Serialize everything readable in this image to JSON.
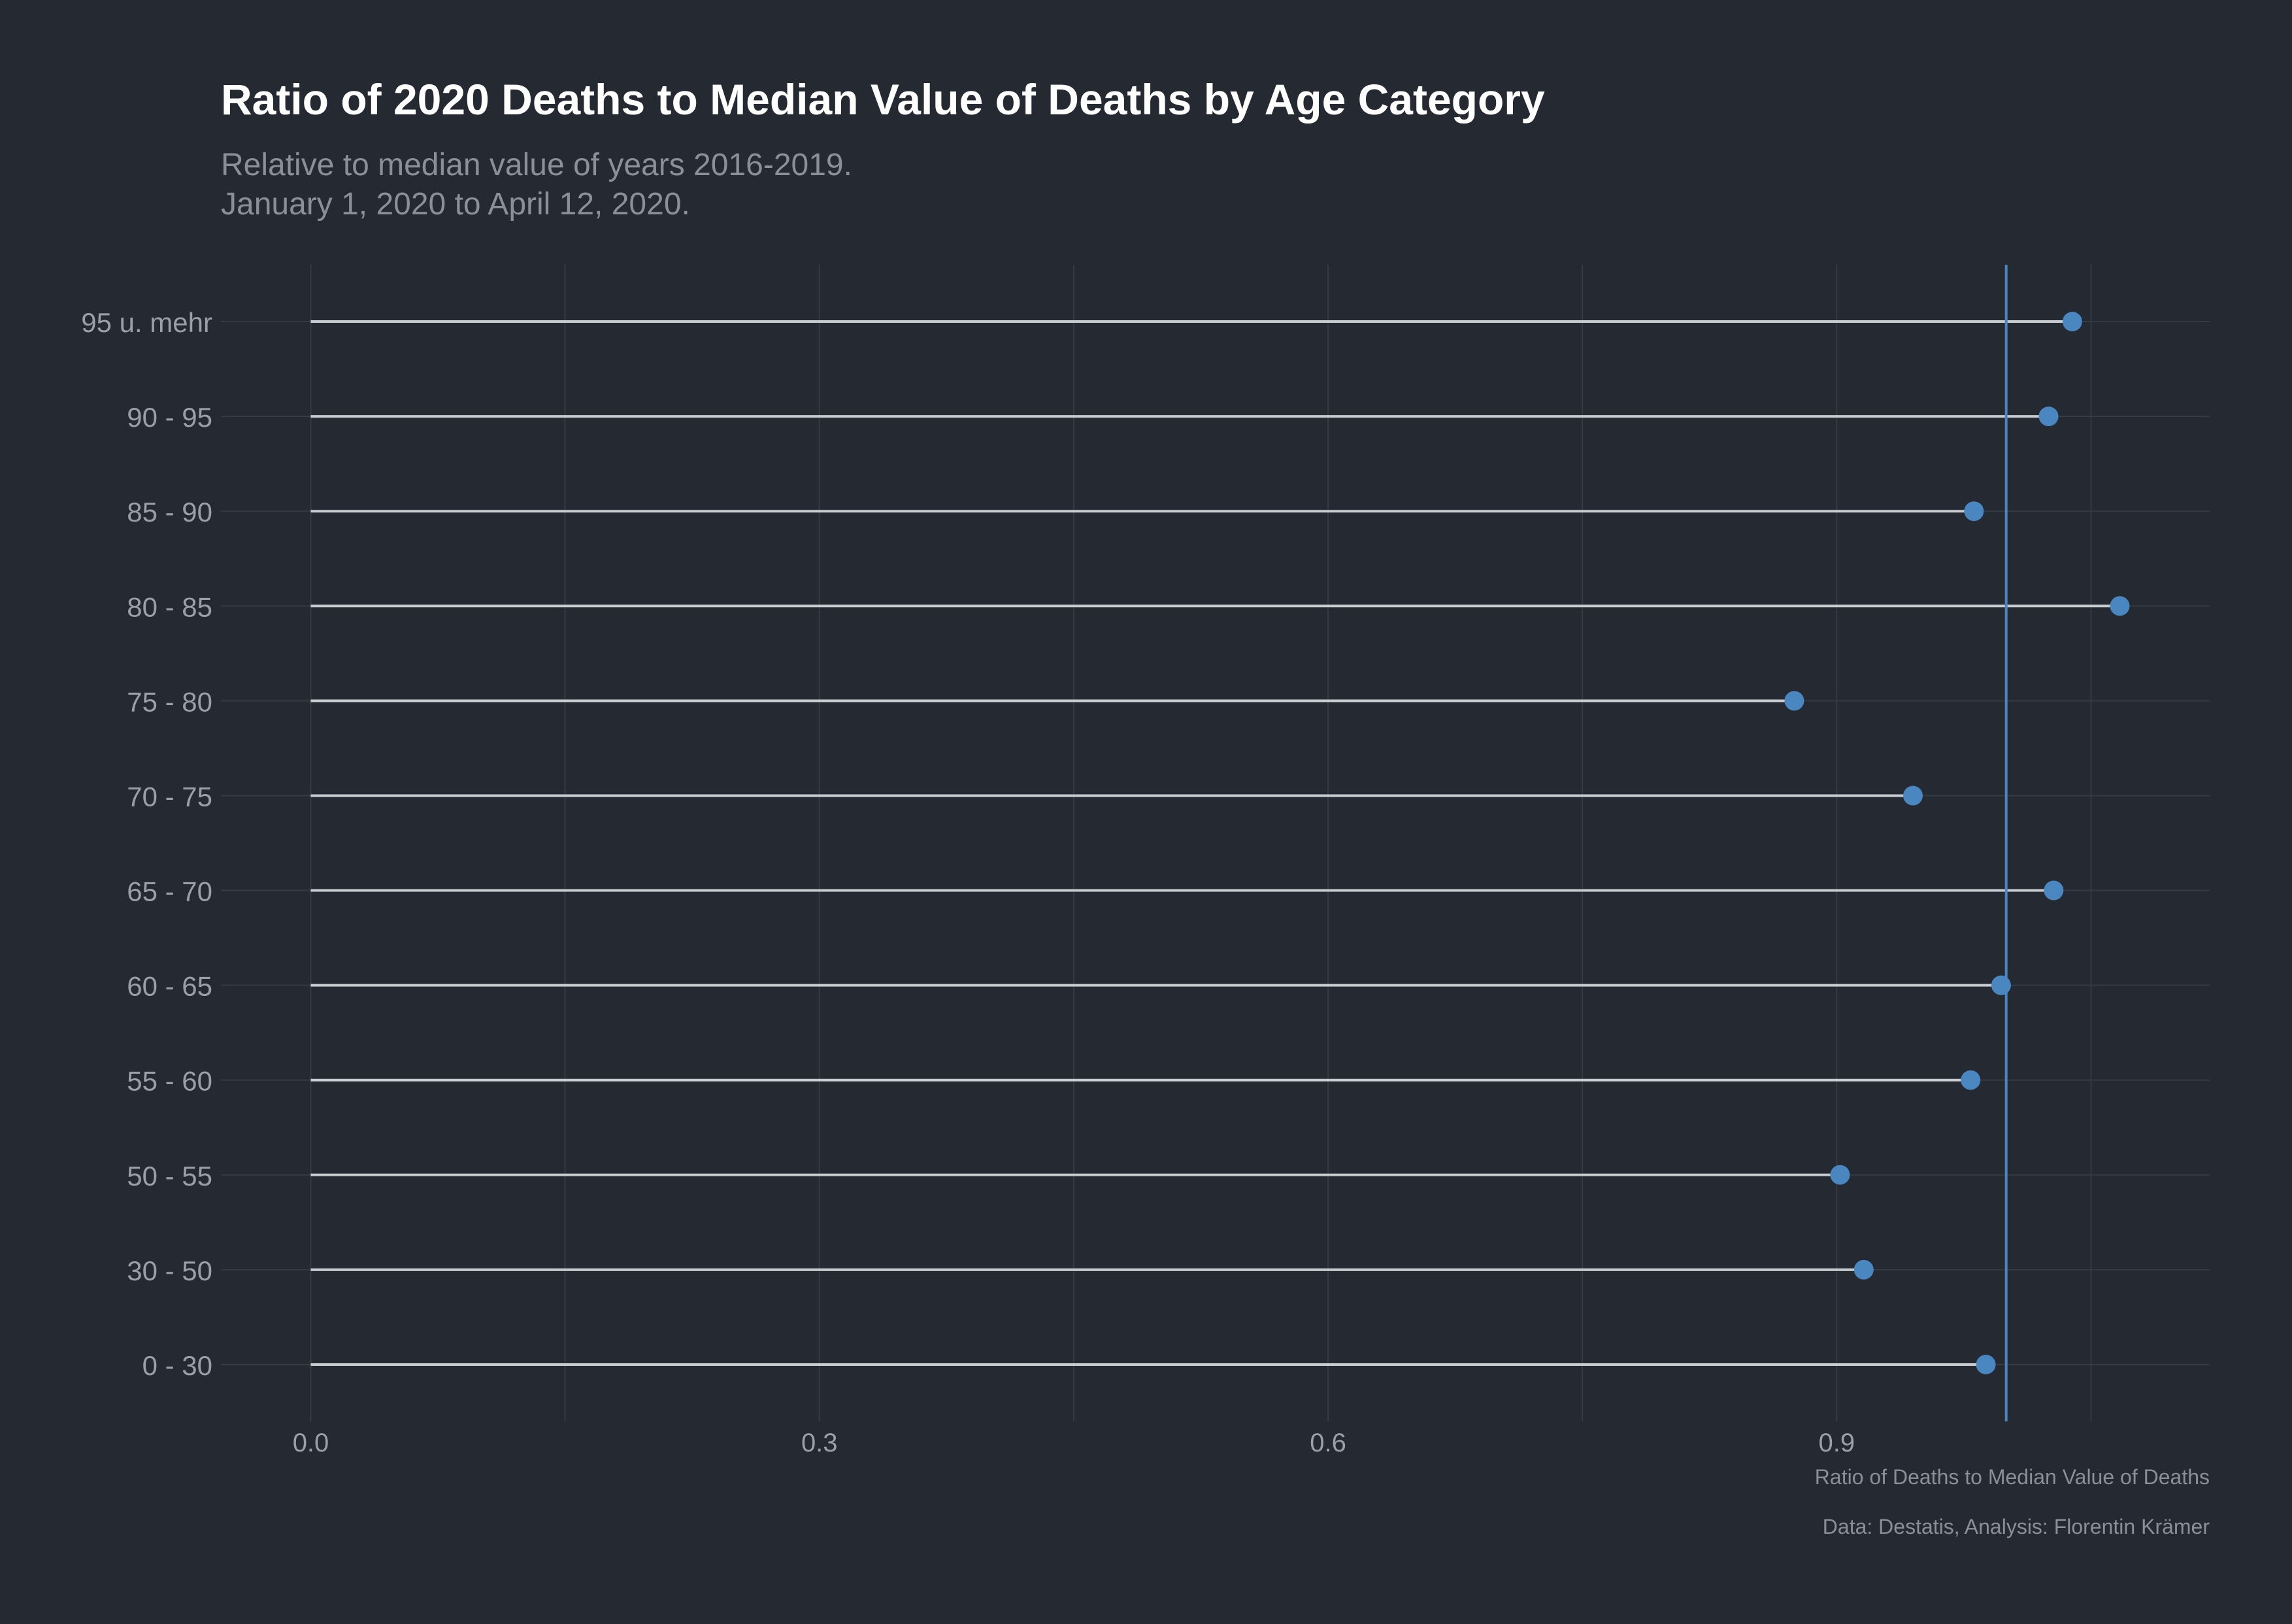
{
  "title": "Ratio of 2020 Deaths to Median Value of Deaths by Age Category",
  "subtitle_lines": [
    "Relative to median value of years 2016-2019.",
    "January 1, 2020 to April 12, 2020."
  ],
  "caption": "Data: Destatis, Analysis: Florentin Krämer",
  "colors": {
    "background": "#252932",
    "grid": "#353a44",
    "stem": "#c8cbd0",
    "point": "#4a86c0",
    "reference_line": "#4a86c0"
  },
  "chart_data": {
    "type": "lollipop",
    "title": "Ratio of 2020 Deaths to Median Value of Deaths by Age Category",
    "xlabel": "Ratio of Deaths to Median Value of Deaths",
    "ylabel": "",
    "xlim": [
      -0.053,
      1.12
    ],
    "x_ticks": [
      0.0,
      0.3,
      0.6,
      0.9
    ],
    "x_tick_labels": [
      "0.0",
      "0.3",
      "0.6",
      "0.9"
    ],
    "reference_line": 1.0,
    "grid": true,
    "categories": [
      "0 - 30",
      "30 - 50",
      "50 - 55",
      "55 - 60",
      "60 - 65",
      "65 - 70",
      "70 - 75",
      "75 - 80",
      "80 - 85",
      "85 - 90",
      "90 - 95",
      "95 u. mehr"
    ],
    "values": [
      0.988,
      0.916,
      0.902,
      0.979,
      0.997,
      1.028,
      0.945,
      0.875,
      1.067,
      0.981,
      1.025,
      1.039
    ]
  }
}
